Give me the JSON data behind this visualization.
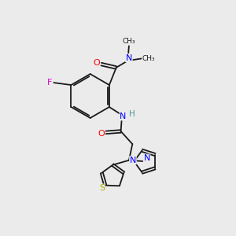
{
  "bg_color": "#ebebeb",
  "bond_color": "#1a1a1a",
  "atom_colors": {
    "O": "#ff0000",
    "N": "#0000ff",
    "F": "#cc00cc",
    "S": "#aaaa00",
    "H": "#4a9a9a",
    "C": "#1a1a1a"
  },
  "figsize": [
    3.0,
    3.0
  ],
  "dpi": 100,
  "lw": 1.3
}
